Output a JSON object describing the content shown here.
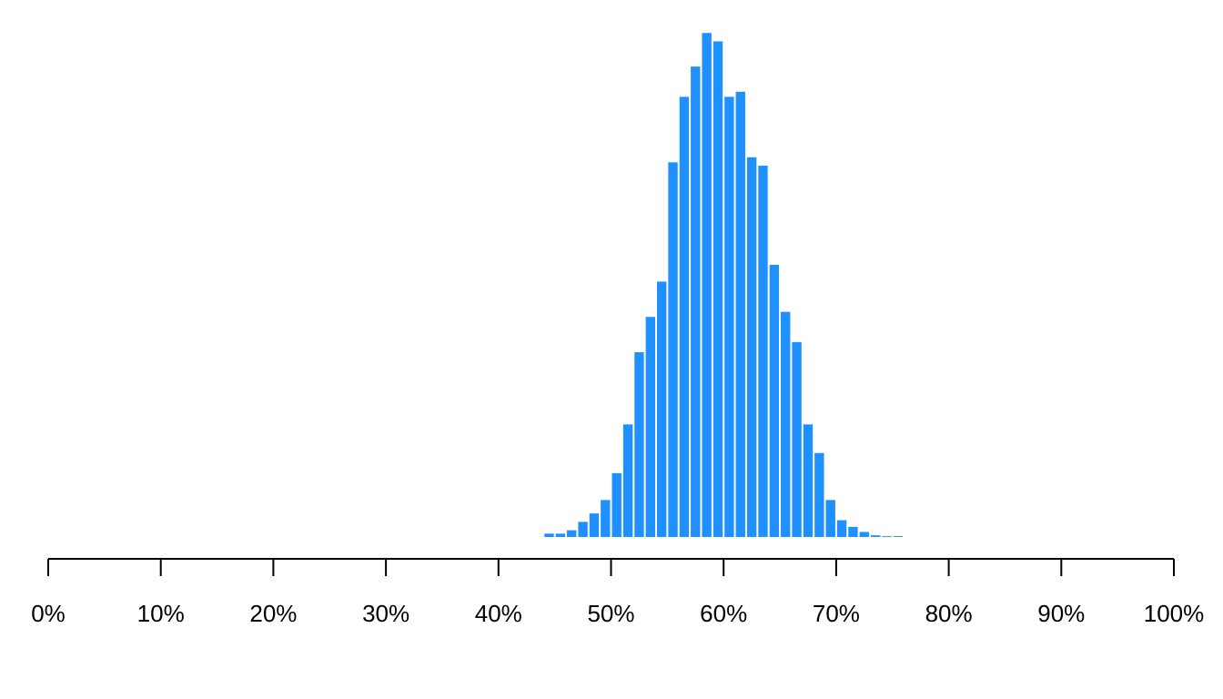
{
  "chart_data": {
    "type": "bar",
    "title": "",
    "xlabel": "",
    "ylabel": "",
    "xlim": [
      0,
      100
    ],
    "bin_width": 1,
    "x": [
      44,
      45,
      46,
      47,
      48,
      49,
      50,
      51,
      52,
      53,
      54,
      55,
      56,
      57,
      58,
      59,
      60,
      61,
      62,
      63,
      64,
      65,
      66,
      67,
      68,
      69,
      70,
      71,
      72,
      73,
      74,
      75
    ],
    "values": [
      2,
      2,
      4,
      9,
      14,
      22,
      38,
      67,
      110,
      131,
      152,
      223,
      262,
      280,
      300,
      295,
      262,
      265,
      226,
      221,
      162,
      134,
      116,
      67,
      50,
      22,
      10,
      6,
      3,
      1,
      0.5,
      0.5
    ],
    "ylim": [
      0,
      305
    ],
    "x_ticks": [
      "0%",
      "10%",
      "20%",
      "30%",
      "40%",
      "50%",
      "60%",
      "70%",
      "80%",
      "90%",
      "100%"
    ],
    "bar_color": "#1E90FF",
    "axis_color": "#000000",
    "show_y_axis": false,
    "grid": false
  }
}
